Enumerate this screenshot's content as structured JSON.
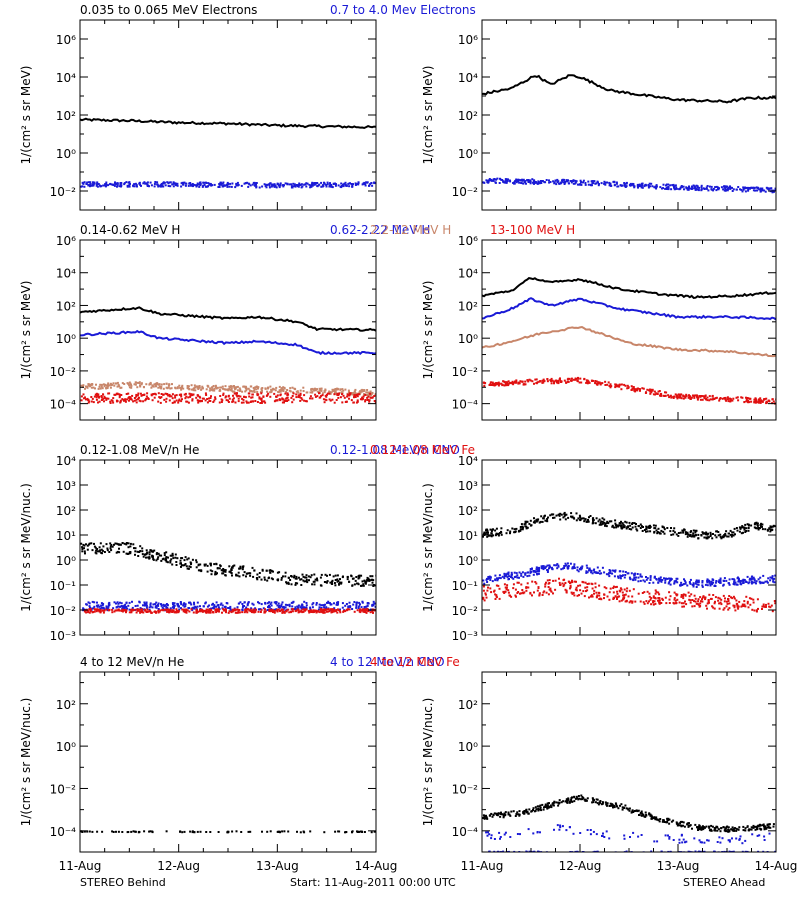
{
  "footer": {
    "left": "STEREO Behind",
    "center": "Start: 11-Aug-2011 00:00 UTC",
    "right": "STEREO Ahead"
  },
  "x_ticks": [
    "11-Aug",
    "12-Aug",
    "13-Aug",
    "14-Aug"
  ],
  "chart_data": [
    {
      "type": "scatter",
      "name": "electrons",
      "ylabel": "1/(cm² s sr MeV)",
      "yscale": "log",
      "ylim_exp": [
        -3,
        7
      ],
      "ytick_exps": [
        -2,
        0,
        2,
        4,
        6
      ],
      "xlim_days": [
        0,
        3
      ],
      "legend": [
        {
          "label": "0.035 to 0.065 MeV Electrons",
          "color": "#000000"
        },
        {
          "label": "0.7 to 4.0 Mev Electrons",
          "color": "#1a1ad6"
        }
      ],
      "behind": [
        {
          "color": "#000000",
          "style": "line",
          "y": [
            [
              0,
              1.75
            ],
            [
              0.5,
              1.7
            ],
            [
              1.0,
              1.6
            ],
            [
              1.5,
              1.55
            ],
            [
              2.0,
              1.45
            ],
            [
              2.5,
              1.4
            ],
            [
              3.0,
              1.35
            ]
          ]
        },
        {
          "color": "#1a1ad6",
          "style": "dots",
          "y": [
            [
              0,
              -1.6
            ],
            [
              1.0,
              -1.6
            ],
            [
              2.0,
              -1.65
            ],
            [
              3.0,
              -1.6
            ]
          ],
          "spread": 0.25
        }
      ],
      "ahead": [
        {
          "color": "#000000",
          "style": "line",
          "y": [
            [
              0,
              3.1
            ],
            [
              0.3,
              3.4
            ],
            [
              0.55,
              4.1
            ],
            [
              0.7,
              3.6
            ],
            [
              0.9,
              4.1
            ],
            [
              1.0,
              4.0
            ],
            [
              1.3,
              3.3
            ],
            [
              1.7,
              3.0
            ],
            [
              2.0,
              2.8
            ],
            [
              2.5,
              2.7
            ],
            [
              2.75,
              2.9
            ],
            [
              3.0,
              2.9
            ]
          ]
        },
        {
          "color": "#1a1ad6",
          "style": "dots",
          "y": [
            [
              0,
              -1.4
            ],
            [
              1.0,
              -1.5
            ],
            [
              2.0,
              -1.75
            ],
            [
              3.0,
              -1.9
            ]
          ],
          "spread": 0.25
        }
      ]
    },
    {
      "type": "scatter",
      "name": "protons",
      "ylabel": "1/(cm² s sr MeV)",
      "yscale": "log",
      "ylim_exp": [
        -5,
        6
      ],
      "ytick_exps": [
        -4,
        -2,
        0,
        2,
        4,
        6
      ],
      "xlim_days": [
        0,
        3
      ],
      "legend": [
        {
          "label": "0.14-0.62 MeV H",
          "color": "#000000"
        },
        {
          "label": "0.62-2.22 MeV H",
          "color": "#1a1ad6"
        },
        {
          "label": "2.2-12 MeV H",
          "color": "#c8866a"
        },
        {
          "label": "13-100 MeV H",
          "color": "#e01010"
        }
      ],
      "behind": [
        {
          "color": "#000000",
          "style": "line",
          "y": [
            [
              0,
              1.6
            ],
            [
              0.6,
              1.85
            ],
            [
              0.8,
              1.5
            ],
            [
              1.5,
              1.2
            ],
            [
              1.8,
              1.3
            ],
            [
              2.2,
              1.0
            ],
            [
              2.4,
              0.55
            ],
            [
              3.0,
              0.5
            ]
          ]
        },
        {
          "color": "#1a1ad6",
          "style": "line",
          "y": [
            [
              0,
              0.2
            ],
            [
              0.6,
              0.4
            ],
            [
              0.8,
              0.0
            ],
            [
              1.5,
              -0.3
            ],
            [
              1.8,
              -0.2
            ],
            [
              2.2,
              -0.4
            ],
            [
              2.4,
              -0.9
            ],
            [
              3.0,
              -0.9
            ]
          ]
        },
        {
          "color": "#c8866a",
          "style": "dots",
          "y": [
            [
              0,
              -2.9
            ],
            [
              0.6,
              -2.8
            ],
            [
              1.2,
              -3.0
            ],
            [
              2.2,
              -3.1
            ],
            [
              3.0,
              -3.3
            ]
          ],
          "spread": 0.35
        },
        {
          "color": "#e01010",
          "style": "dots",
          "y": [
            [
              0,
              -3.6
            ],
            [
              3.0,
              -3.6
            ]
          ],
          "spread": 0.6
        }
      ],
      "ahead": [
        {
          "color": "#000000",
          "style": "line",
          "y": [
            [
              0,
              2.6
            ],
            [
              0.3,
              2.9
            ],
            [
              0.5,
              3.7
            ],
            [
              0.7,
              3.4
            ],
            [
              1.0,
              3.6
            ],
            [
              1.4,
              3.0
            ],
            [
              1.8,
              2.7
            ],
            [
              2.2,
              2.5
            ],
            [
              2.6,
              2.6
            ],
            [
              3.0,
              2.8
            ]
          ]
        },
        {
          "color": "#1a1ad6",
          "style": "line",
          "y": [
            [
              0,
              1.2
            ],
            [
              0.3,
              1.8
            ],
            [
              0.5,
              2.4
            ],
            [
              0.7,
              2.0
            ],
            [
              1.0,
              2.4
            ],
            [
              1.4,
              1.8
            ],
            [
              2.0,
              1.3
            ],
            [
              2.5,
              1.3
            ],
            [
              3.0,
              1.2
            ]
          ]
        },
        {
          "color": "#c8866a",
          "style": "line",
          "y": [
            [
              0,
              -0.6
            ],
            [
              0.3,
              -0.2
            ],
            [
              0.6,
              0.3
            ],
            [
              1.0,
              0.7
            ],
            [
              1.5,
              -0.3
            ],
            [
              2.0,
              -0.7
            ],
            [
              2.5,
              -0.8
            ],
            [
              3.0,
              -1.1
            ]
          ]
        },
        {
          "color": "#e01010",
          "style": "dots",
          "y": [
            [
              0,
              -2.8
            ],
            [
              0.5,
              -2.6
            ],
            [
              1.0,
              -2.5
            ],
            [
              1.5,
              -3.0
            ],
            [
              2.0,
              -3.5
            ],
            [
              3.0,
              -3.8
            ]
          ],
          "spread": 0.3
        }
      ]
    },
    {
      "type": "scatter",
      "name": "heavy-low",
      "ylabel": "1/(cm² s sr MeV/nuc.)",
      "yscale": "log",
      "ylim_exp": [
        -3,
        4
      ],
      "ytick_exps": [
        -3,
        -2,
        -1,
        0,
        1,
        2,
        3,
        4
      ],
      "xlim_days": [
        0,
        3
      ],
      "legend": [
        {
          "label": "0.12-1.08 MeV/n He",
          "color": "#000000"
        },
        {
          "label": "0.12-1.08 MeV/n CNO",
          "color": "#1a1ad6"
        },
        {
          "label": "0.12-1.08 MeV Fe",
          "color": "#e01010"
        }
      ],
      "behind": [
        {
          "color": "#000000",
          "style": "dots",
          "y": [
            [
              0,
              0.5
            ],
            [
              0.5,
              0.5
            ],
            [
              0.8,
              0.2
            ],
            [
              1.3,
              -0.3
            ],
            [
              1.6,
              -0.4
            ],
            [
              2.2,
              -0.75
            ],
            [
              3.0,
              -0.8
            ]
          ],
          "spread": 0.45
        },
        {
          "color": "#1a1ad6",
          "style": "dots",
          "y": [
            [
              0,
              -1.8
            ],
            [
              3.0,
              -1.8
            ]
          ],
          "spread": 0.35
        },
        {
          "color": "#e01010",
          "style": "dots",
          "y": [
            [
              0,
              -2.0
            ],
            [
              3.0,
              -2.0
            ]
          ],
          "spread": 0.15
        }
      ],
      "ahead": [
        {
          "color": "#000000",
          "style": "dots",
          "y": [
            [
              0,
              1.1
            ],
            [
              0.3,
              1.2
            ],
            [
              0.6,
              1.7
            ],
            [
              0.9,
              1.8
            ],
            [
              1.3,
              1.5
            ],
            [
              1.8,
              1.25
            ],
            [
              2.2,
              1.05
            ],
            [
              2.5,
              1.05
            ],
            [
              2.75,
              1.4
            ],
            [
              3.0,
              1.3
            ]
          ],
          "spread": 0.3
        },
        {
          "color": "#1a1ad6",
          "style": "dots",
          "y": [
            [
              0,
              -0.8
            ],
            [
              0.4,
              -0.5
            ],
            [
              0.8,
              -0.2
            ],
            [
              1.2,
              -0.4
            ],
            [
              1.7,
              -0.75
            ],
            [
              2.2,
              -0.9
            ],
            [
              2.6,
              -0.8
            ],
            [
              3.0,
              -0.7
            ]
          ],
          "spread": 0.3
        },
        {
          "color": "#e01010",
          "style": "dots",
          "y": [
            [
              0,
              -1.3
            ],
            [
              0.8,
              -1.0
            ],
            [
              1.5,
              -1.4
            ],
            [
              3.0,
              -1.8
            ]
          ],
          "spread": 0.6
        }
      ]
    },
    {
      "type": "scatter",
      "name": "heavy-high",
      "ylabel": "1/(cm² s sr MeV/nuc.)",
      "yscale": "log",
      "ylim_exp": [
        -5,
        3.5
      ],
      "ytick_exps": [
        -4,
        -2,
        0,
        2
      ],
      "xlim_days": [
        0,
        3
      ],
      "legend": [
        {
          "label": "4 to 12 MeV/n He",
          "color": "#000000"
        },
        {
          "label": "4 to 12 MeV/n CNO",
          "color": "#1a1ad6"
        },
        {
          "label": "4 to 12 MeV Fe",
          "color": "#e01010"
        }
      ],
      "behind": [
        {
          "color": "#000000",
          "style": "sparse",
          "y": [
            [
              0,
              -4.0
            ],
            [
              3.0,
              -4.0
            ]
          ],
          "spread": 0.05
        }
      ],
      "ahead": [
        {
          "color": "#000000",
          "style": "dots",
          "y": [
            [
              0,
              -3.3
            ],
            [
              0.4,
              -3.1
            ],
            [
              0.8,
              -2.6
            ],
            [
              1.0,
              -2.4
            ],
            [
              1.4,
              -2.8
            ],
            [
              1.8,
              -3.4
            ],
            [
              2.2,
              -3.8
            ],
            [
              2.6,
              -3.9
            ],
            [
              3.0,
              -3.7
            ]
          ],
          "spread": 0.25
        },
        {
          "color": "#1a1ad6",
          "style": "sparse",
          "y": [
            [
              0.1,
              -4.2
            ],
            [
              0.4,
              -4.0
            ],
            [
              0.8,
              -3.8
            ],
            [
              1.2,
              -4.1
            ],
            [
              1.8,
              -4.3
            ],
            [
              2.5,
              -4.4
            ],
            [
              3.0,
              -4.2
            ]
          ],
          "spread": 0.4
        },
        {
          "color": "#1a1ad6",
          "style": "sparse",
          "y": [
            [
              0,
              -4.95
            ],
            [
              3.0,
              -4.95
            ]
          ],
          "spread": 0.04
        }
      ]
    }
  ]
}
